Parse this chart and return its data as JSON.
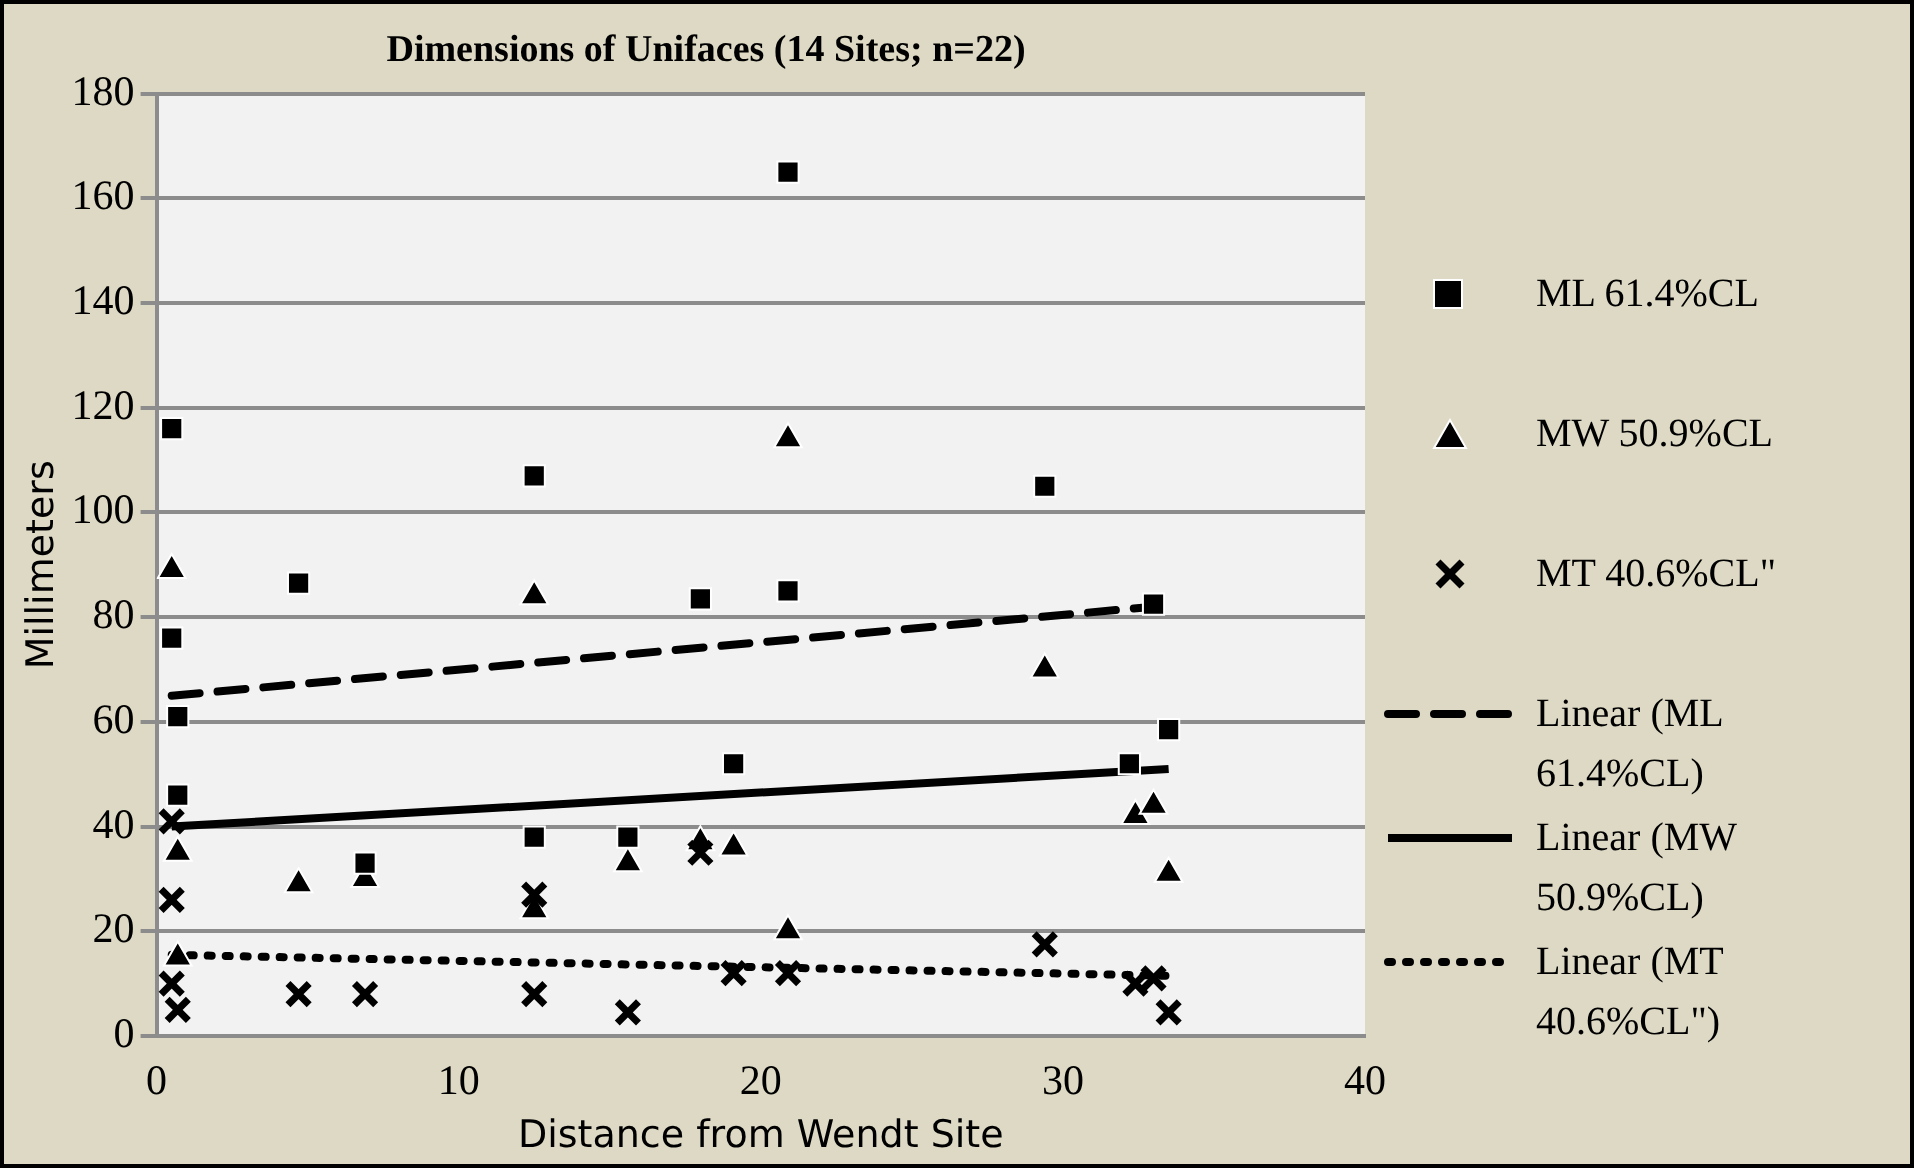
{
  "chart_data": {
    "type": "scatter",
    "title": "Dimensions of Unifaces (14 Sites; n=22)",
    "xlabel": "Distance from Wendt Site",
    "ylabel": "Millimeters",
    "xlim": [
      0,
      40
    ],
    "xticks": [
      0,
      10,
      20,
      30,
      40
    ],
    "ylim": [
      0,
      180
    ],
    "yticks": [
      0,
      20,
      40,
      60,
      80,
      100,
      120,
      140,
      160,
      180
    ],
    "grid": "y",
    "legend": "right",
    "series": [
      {
        "name": "ML 61.4%CL",
        "marker": "square",
        "color": "#000000",
        "x": [
          0.5,
          0.5,
          0.7,
          0.7,
          4.7,
          6.9,
          12.5,
          12.5,
          15.6,
          18,
          19.1,
          20.9,
          20.9,
          29.4,
          32.2,
          33,
          33.5
        ],
        "values": [
          116,
          76,
          61,
          46,
          86.5,
          33,
          107,
          38,
          38,
          83.5,
          52,
          165,
          85,
          105,
          52,
          82.5,
          58.5
        ]
      },
      {
        "name": "MW 50.9%CL",
        "marker": "triangle",
        "color": "#000000",
        "x": [
          0.5,
          0.7,
          0.7,
          4.7,
          6.9,
          12.5,
          12.5,
          15.6,
          18,
          19.1,
          20.9,
          20.9,
          29.4,
          32.4,
          33,
          33.5
        ],
        "values": [
          89,
          35,
          15,
          29,
          30,
          84,
          24,
          33,
          37,
          36,
          114,
          20,
          70,
          42,
          44,
          31
        ]
      },
      {
        "name": "MT 40.6%CL\"",
        "marker": "cross",
        "color": "#000000",
        "x": [
          0.5,
          0.5,
          0.5,
          0.7,
          4.7,
          6.9,
          12.5,
          12.5,
          15.6,
          18,
          19.1,
          20.9,
          29.4,
          32.4,
          33,
          33.5
        ],
        "values": [
          41,
          26,
          10,
          5,
          8,
          8,
          27,
          8,
          4.5,
          35,
          12,
          12,
          17.5,
          10,
          11,
          4.5
        ]
      },
      {
        "name": "Linear (ML 61.4%CL)",
        "type": "line",
        "marker": "none",
        "line_style": "dashed",
        "color": "#000000",
        "x": [
          0.5,
          33
        ],
        "values": [
          65,
          82
        ]
      },
      {
        "name": "Linear (MW 50.9%CL)",
        "type": "line",
        "marker": "none",
        "line_style": "solid",
        "color": "#000000",
        "x": [
          0.5,
          33.5
        ],
        "values": [
          40,
          51
        ]
      },
      {
        "name": "Linear (MT 40.6%CL\")",
        "type": "line",
        "marker": "none",
        "line_style": "dotted",
        "color": "#000000",
        "x": [
          0.5,
          33.5
        ],
        "values": [
          15.5,
          11.5
        ]
      }
    ]
  }
}
